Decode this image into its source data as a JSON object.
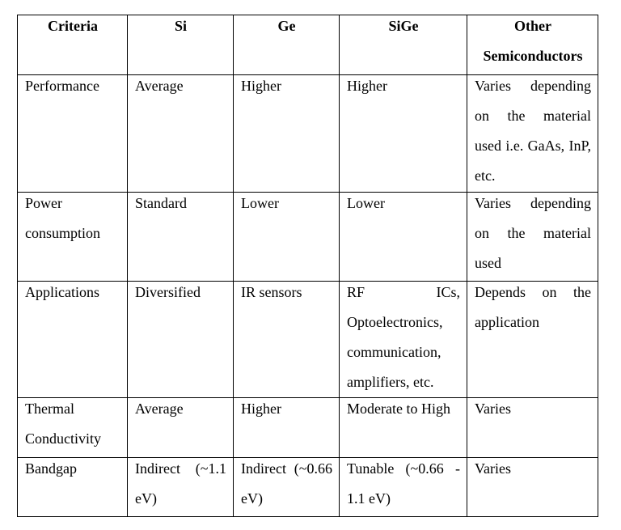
{
  "table": {
    "headers": [
      "Criteria",
      "Si",
      "Ge",
      "SiGe",
      "Other Semiconductors"
    ],
    "rows": [
      [
        "Performance",
        "Average",
        "Higher",
        "Higher",
        "Varies depending on the material used i.e. GaAs, InP, etc."
      ],
      [
        "Power consumption",
        "Standard",
        "Lower",
        "Lower",
        "Varies depending on the material used"
      ],
      [
        "Applications",
        "Diversified",
        "IR sensors",
        "RF ICs, Optoelectronics, communication, amplifiers, etc.",
        "Depends on the application"
      ],
      [
        "Thermal Conductivity",
        "Average",
        "Higher",
        "Moderate to High",
        "Varies"
      ],
      [
        "Bandgap",
        "Indirect (~1.1 eV)",
        "Indirect (~0.66 eV)",
        "Tunable (~0.66 - 1.1 eV)",
        "Varies"
      ]
    ]
  }
}
